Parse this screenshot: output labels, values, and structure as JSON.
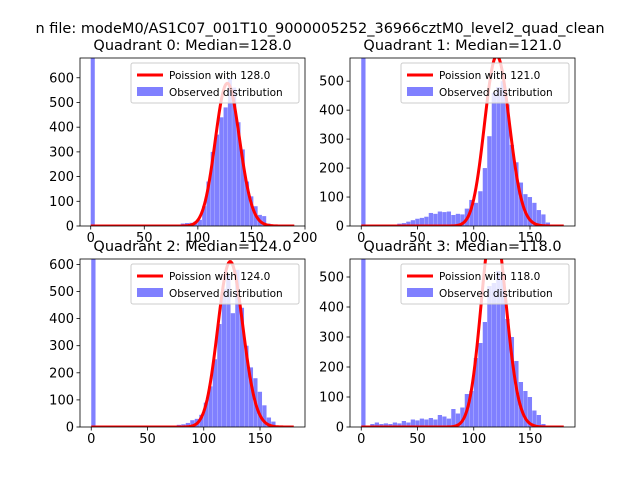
{
  "figure_title": "n file: modeM0/AS1C07_001T10_9000005252_36966cztM0_level2_quad_clean",
  "colors": {
    "hist": "#8080ff",
    "fit": "#ff0000",
    "axes": "#000000"
  },
  "chart_data": [
    {
      "type": "bar",
      "title": "Quadrant 0: Median=128.0",
      "xlim": [
        -10,
        200
      ],
      "ylim": [
        0,
        680
      ],
      "xticks": [
        0,
        50,
        100,
        150,
        200
      ],
      "yticks": [
        0,
        100,
        200,
        300,
        400,
        500,
        600
      ],
      "legend": {
        "placement": "top-right",
        "fit_label": "Poission with 128.0",
        "hist_label": "Observed distribution"
      },
      "bin_width": 3.8,
      "bins": [
        [
          0,
          680
        ],
        [
          72,
          2
        ],
        [
          76,
          5
        ],
        [
          80,
          6
        ],
        [
          84,
          10
        ],
        [
          88,
          12
        ],
        [
          92,
          13
        ],
        [
          96,
          18
        ],
        [
          100,
          25
        ],
        [
          104,
          80
        ],
        [
          108,
          180
        ],
        [
          112,
          300
        ],
        [
          116,
          370
        ],
        [
          120,
          440
        ],
        [
          124,
          480
        ],
        [
          128,
          600
        ],
        [
          132,
          560
        ],
        [
          136,
          420
        ],
        [
          140,
          310
        ],
        [
          144,
          180
        ],
        [
          148,
          120
        ],
        [
          152,
          80
        ],
        [
          156,
          45
        ],
        [
          160,
          40
        ],
        [
          164,
          10
        ],
        [
          168,
          5
        ]
      ],
      "fit": {
        "mean": 128.0,
        "x_max": 190
      }
    },
    {
      "type": "bar",
      "title": "Quadrant 1: Median=121.0",
      "xlim": [
        -10,
        190
      ],
      "ylim": [
        0,
        580
      ],
      "xticks": [
        0,
        50,
        100,
        150
      ],
      "yticks": [
        0,
        100,
        200,
        300,
        400,
        500
      ],
      "legend": {
        "placement": "top-right",
        "fit_label": "Poission with 121.0",
        "hist_label": "Observed distribution"
      },
      "bin_width": 3.8,
      "bins": [
        [
          0,
          580
        ],
        [
          32,
          8
        ],
        [
          36,
          10
        ],
        [
          40,
          15
        ],
        [
          44,
          20
        ],
        [
          48,
          25
        ],
        [
          52,
          28
        ],
        [
          56,
          32
        ],
        [
          60,
          45
        ],
        [
          64,
          42
        ],
        [
          68,
          50
        ],
        [
          72,
          48
        ],
        [
          76,
          50
        ],
        [
          80,
          38
        ],
        [
          84,
          42
        ],
        [
          88,
          40
        ],
        [
          92,
          60
        ],
        [
          96,
          90
        ],
        [
          100,
          80
        ],
        [
          104,
          120
        ],
        [
          108,
          200
        ],
        [
          112,
          310
        ],
        [
          116,
          460
        ],
        [
          120,
          480
        ],
        [
          124,
          500
        ],
        [
          128,
          420
        ],
        [
          132,
          280
        ],
        [
          136,
          220
        ],
        [
          140,
          150
        ],
        [
          144,
          110
        ],
        [
          148,
          100
        ],
        [
          152,
          80
        ],
        [
          156,
          55
        ],
        [
          160,
          40
        ],
        [
          164,
          12
        ],
        [
          168,
          5
        ]
      ],
      "fit": {
        "mean": 121.0,
        "x_max": 180
      }
    },
    {
      "type": "bar",
      "title": "Quadrant 2: Median=124.0",
      "xlim": [
        -10,
        190
      ],
      "ylim": [
        0,
        620
      ],
      "xticks": [
        0,
        50,
        100,
        150
      ],
      "yticks": [
        0,
        100,
        200,
        300,
        400,
        500,
        600
      ],
      "legend": {
        "placement": "top-right",
        "fit_label": "Poission with 124.0",
        "hist_label": "Observed distribution"
      },
      "bin_width": 3.8,
      "bins": [
        [
          0,
          620
        ],
        [
          72,
          2
        ],
        [
          76,
          8
        ],
        [
          80,
          10
        ],
        [
          84,
          15
        ],
        [
          88,
          25
        ],
        [
          92,
          30
        ],
        [
          96,
          45
        ],
        [
          100,
          90
        ],
        [
          104,
          150
        ],
        [
          108,
          250
        ],
        [
          112,
          380
        ],
        [
          116,
          510
        ],
        [
          120,
          560
        ],
        [
          124,
          420
        ],
        [
          128,
          580
        ],
        [
          132,
          440
        ],
        [
          136,
          300
        ],
        [
          140,
          220
        ],
        [
          144,
          180
        ],
        [
          148,
          130
        ],
        [
          152,
          80
        ],
        [
          156,
          35
        ],
        [
          160,
          20
        ],
        [
          164,
          5
        ]
      ],
      "fit": {
        "mean": 124.0,
        "x_max": 180
      }
    },
    {
      "type": "bar",
      "title": "Quadrant 3: Median=118.0",
      "xlim": [
        -10,
        190
      ],
      "ylim": [
        0,
        560
      ],
      "xticks": [
        0,
        50,
        100,
        150
      ],
      "yticks": [
        0,
        100,
        200,
        300,
        400,
        500
      ],
      "legend": {
        "placement": "top-right",
        "fit_label": "Poission with 118.0",
        "hist_label": "Observed distribution"
      },
      "bin_width": 3.8,
      "bins": [
        [
          0,
          560
        ],
        [
          8,
          10
        ],
        [
          12,
          15
        ],
        [
          16,
          10
        ],
        [
          20,
          12
        ],
        [
          24,
          10
        ],
        [
          28,
          15
        ],
        [
          32,
          12
        ],
        [
          36,
          20
        ],
        [
          40,
          15
        ],
        [
          44,
          25
        ],
        [
          48,
          22
        ],
        [
          52,
          28
        ],
        [
          56,
          25
        ],
        [
          60,
          30
        ],
        [
          64,
          25
        ],
        [
          68,
          40
        ],
        [
          72,
          35
        ],
        [
          76,
          28
        ],
        [
          80,
          60
        ],
        [
          84,
          45
        ],
        [
          88,
          65
        ],
        [
          92,
          110
        ],
        [
          96,
          120
        ],
        [
          100,
          230
        ],
        [
          104,
          280
        ],
        [
          108,
          350
        ],
        [
          112,
          470
        ],
        [
          116,
          480
        ],
        [
          120,
          520
        ],
        [
          124,
          500
        ],
        [
          128,
          360
        ],
        [
          132,
          300
        ],
        [
          136,
          220
        ],
        [
          140,
          150
        ],
        [
          144,
          120
        ],
        [
          148,
          100
        ],
        [
          152,
          55
        ],
        [
          156,
          40
        ],
        [
          160,
          10
        ]
      ],
      "fit": {
        "mean": 118.0,
        "x_max": 180
      }
    }
  ]
}
